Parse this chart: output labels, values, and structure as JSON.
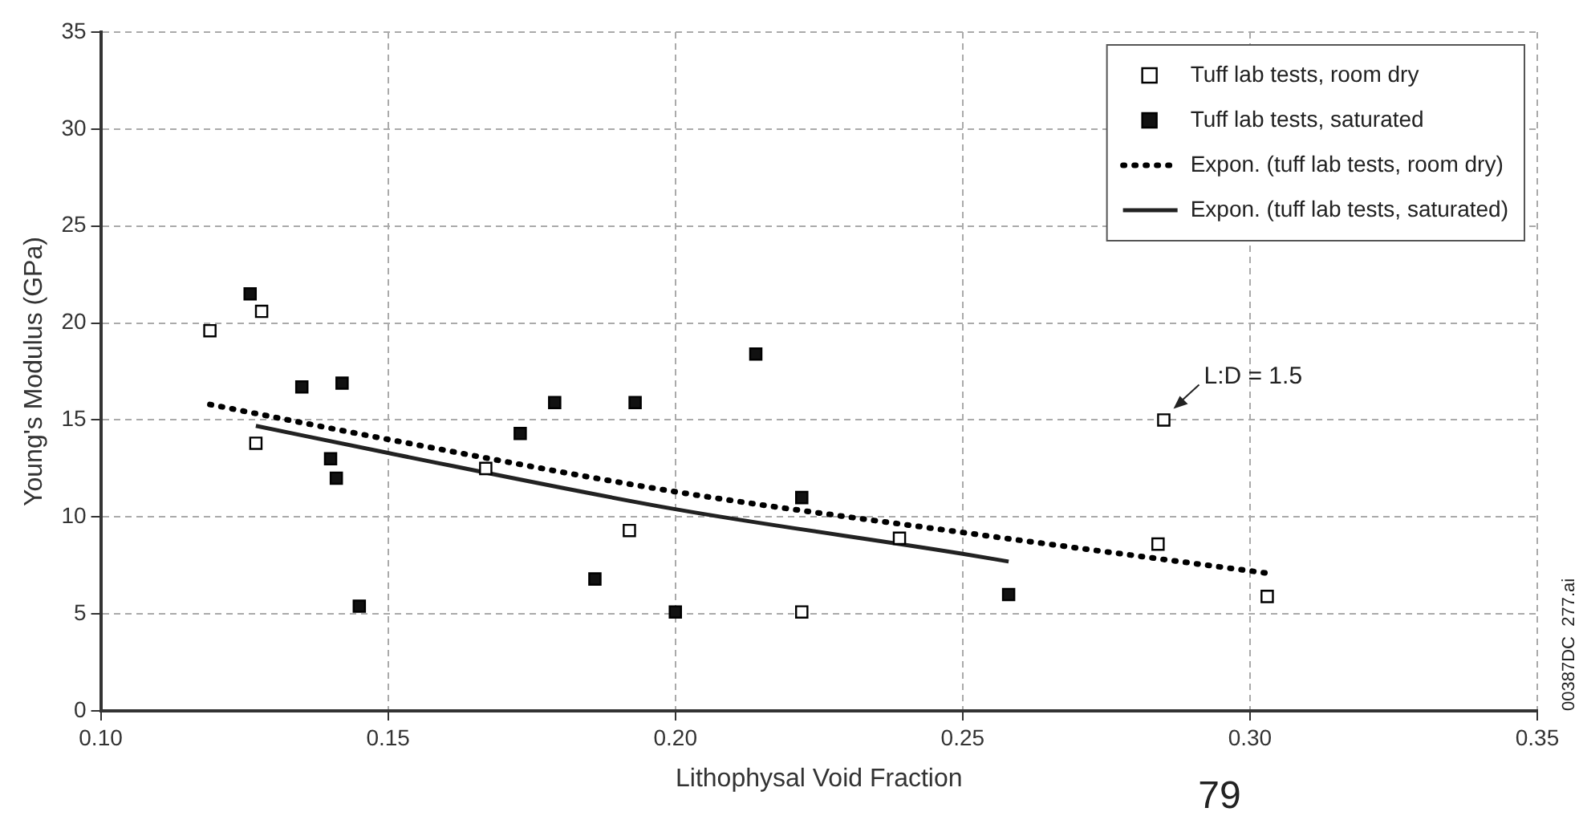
{
  "chart_data": {
    "type": "scatter",
    "xlabel": "Lithophysal Void Fraction",
    "ylabel": "Young's Modulus (GPa)",
    "xlim": [
      0.1,
      0.35
    ],
    "xticks": [
      {
        "value": 0.1,
        "label": "0.10"
      },
      {
        "value": 0.15,
        "label": "0.15"
      },
      {
        "value": 0.2,
        "label": "0.20"
      },
      {
        "value": 0.25,
        "label": "0.25"
      },
      {
        "value": 0.3,
        "label": "0.30"
      },
      {
        "value": 0.35,
        "label": "0.35"
      }
    ],
    "ylim": [
      0,
      35
    ],
    "yticks": [
      0,
      5,
      10,
      15,
      20,
      25,
      30,
      35
    ],
    "grid": true,
    "legend": "top right",
    "series": [
      {
        "name": "Tuff lab tests, room dry",
        "type": "scatter",
        "color": "#ffffff",
        "marker": "square",
        "x": [
          0.119,
          0.128,
          0.127,
          0.167,
          0.192,
          0.222,
          0.239,
          0.284,
          0.285,
          0.303
        ],
        "values": [
          19.6,
          20.6,
          13.8,
          12.5,
          9.3,
          5.1,
          8.9,
          8.6,
          15.0,
          5.9
        ]
      },
      {
        "name": "Tuff lab tests, saturated",
        "type": "scatter",
        "color": "#111111",
        "marker": "square",
        "x": [
          0.126,
          0.135,
          0.142,
          0.14,
          0.141,
          0.145,
          0.173,
          0.179,
          0.193,
          0.186,
          0.2,
          0.214,
          0.222,
          0.258
        ],
        "values": [
          21.5,
          16.7,
          16.9,
          13.0,
          12.0,
          5.4,
          14.3,
          15.9,
          15.9,
          6.8,
          5.1,
          18.4,
          11.0,
          6.0
        ]
      },
      {
        "name": "Expon. (tuff lab tests, room dry)",
        "type": "line",
        "color": "#000000",
        "marker": "none",
        "line_style": "dotted",
        "x": [
          0.119,
          0.15,
          0.2,
          0.25,
          0.303
        ],
        "values": [
          15.8,
          14.0,
          11.3,
          9.2,
          7.1
        ]
      },
      {
        "name": "Expon. (tuff lab tests, saturated)",
        "type": "line",
        "color": "#222222",
        "marker": "none",
        "line_style": "solid",
        "x": [
          0.127,
          0.15,
          0.2,
          0.25,
          0.258
        ],
        "values": [
          14.7,
          13.3,
          10.4,
          8.1,
          7.7
        ]
      }
    ],
    "annotations": [
      {
        "text": "L:D = 1.5",
        "x": 0.285,
        "y": 15.0
      },
      "00387DC  277.ai",
      "79"
    ]
  }
}
